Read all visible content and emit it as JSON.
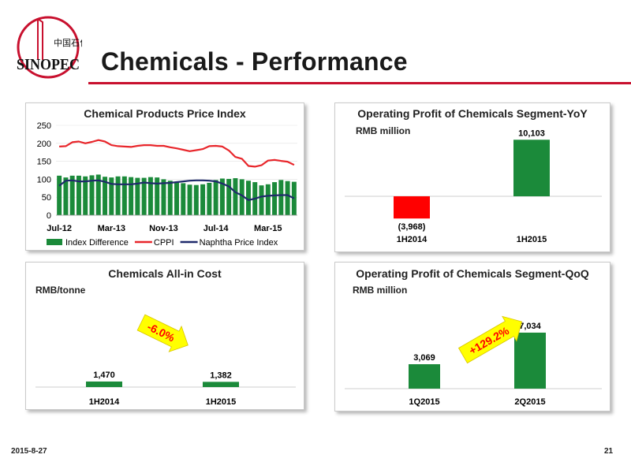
{
  "header": {
    "title": "Chemicals - Performance",
    "logo_text": "SINOPEC",
    "logo_cn": "中国石化"
  },
  "colors": {
    "green": "#1b8a3a",
    "red": "#ff0000",
    "navy": "#1f2a6b",
    "cppi": "#e8262b",
    "arrow": "#ffff00",
    "rule": "#c8102e"
  },
  "footer": {
    "date": "2015-8-27",
    "page": "21"
  },
  "chart_data": [
    {
      "type": "line",
      "title": "Chemical Products Price Index",
      "x_tick_labels": [
        "Jul-12",
        "Mar-13",
        "Nov-13",
        "Jul-14",
        "Mar-15"
      ],
      "ylim": [
        0,
        250
      ],
      "y_ticks": [
        "0",
        "50",
        "100",
        "150",
        "200",
        "250"
      ],
      "legend_position": "bottom",
      "series": [
        {
          "name": "Index Difference",
          "kind": "bar",
          "color": "#1b8a3a",
          "values": [
            110,
            105,
            110,
            110,
            108,
            111,
            113,
            107,
            105,
            108,
            108,
            106,
            104,
            104,
            106,
            105,
            100,
            96,
            93,
            89,
            85,
            84,
            86,
            90,
            98,
            102,
            101,
            103,
            100,
            96,
            92,
            83,
            86,
            92,
            98,
            95,
            93
          ]
        },
        {
          "name": "CPPI",
          "kind": "line",
          "color": "#e8262b",
          "values": [
            191,
            192,
            203,
            205,
            200,
            204,
            209,
            205,
            195,
            192,
            191,
            190,
            193,
            195,
            195,
            193,
            193,
            189,
            186,
            182,
            178,
            181,
            184,
            192,
            193,
            191,
            180,
            162,
            157,
            137,
            135,
            139,
            152,
            154,
            151,
            149,
            140
          ]
        },
        {
          "name": "Naphtha Price Index",
          "kind": "line",
          "color": "#1f2a6b",
          "values": [
            82,
            96,
            97,
            94,
            94,
            96,
            97,
            93,
            87,
            86,
            86,
            86,
            88,
            91,
            89,
            88,
            89,
            90,
            92,
            94,
            96,
            97,
            97,
            96,
            94,
            88,
            80,
            64,
            55,
            42,
            46,
            52,
            54,
            55,
            56,
            56,
            47
          ]
        }
      ]
    },
    {
      "type": "bar",
      "title": "Operating Profit of Chemicals Segment-YoY",
      "ylabel": "RMB million",
      "categories": [
        "1H2014",
        "1H2015"
      ],
      "values": [
        -3968,
        10103
      ],
      "value_labels": [
        "(3,968)",
        "10,103"
      ],
      "bar_colors": [
        "#ff0000",
        "#1b8a3a"
      ]
    },
    {
      "type": "bar",
      "title": "Chemicals All-in Cost",
      "ylabel": "RMB/tonne",
      "categories": [
        "1H2014",
        "1H2015"
      ],
      "values": [
        1470,
        1382
      ],
      "value_labels": [
        "1,470",
        "1,382"
      ],
      "bar_colors": [
        "#1b8a3a",
        "#1b8a3a"
      ],
      "annotation": "-6.0%"
    },
    {
      "type": "bar",
      "title": "Operating Profit of Chemicals Segment-QoQ",
      "ylabel": "RMB million",
      "categories": [
        "1Q2015",
        "2Q2015"
      ],
      "values": [
        3069,
        7034
      ],
      "value_labels": [
        "3,069",
        "7,034"
      ],
      "bar_colors": [
        "#1b8a3a",
        "#1b8a3a"
      ],
      "annotation": "+129.2%"
    }
  ]
}
